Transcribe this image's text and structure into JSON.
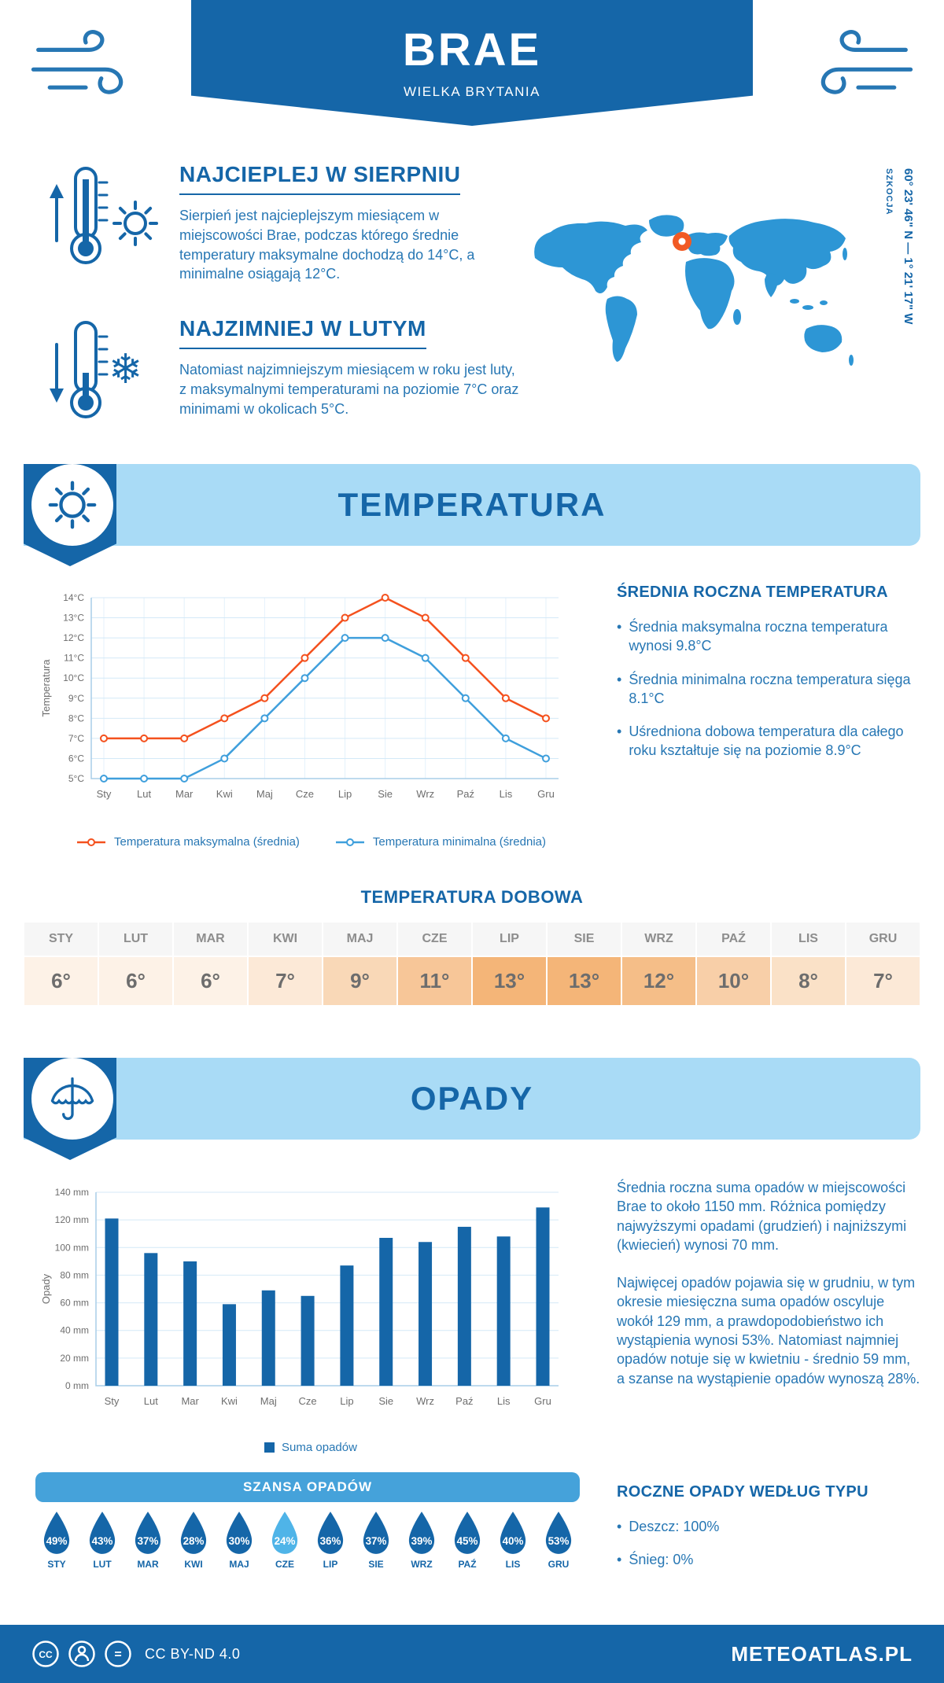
{
  "meta": {
    "brand": "METEOATLAS.PL",
    "license": "CC BY-ND 4.0"
  },
  "header": {
    "title": "BRAE",
    "subtitle": "WIELKA BRYTANIA"
  },
  "highlights": {
    "warm": {
      "title": "NAJCIEPLEJ W SIERPNIU",
      "text": "Sierpień jest najcieplejszym miesiącem w miejscowości Brae, podczas którego średnie temperatury maksymalne dochodzą do 14°C, a minimalne osiągają 12°C."
    },
    "cold": {
      "title": "NAJZIMNIEJ W LUTYM",
      "text": "Natomiast najzimniejszym miesiącem w roku jest luty, z maksymalnymi temperaturami na poziomie 7°C oraz minimami w okolicach 5°C."
    }
  },
  "map": {
    "coordinates": "60° 23' 46\" N — 1° 21' 17\" W",
    "region": "SZKOCJA",
    "marker_color": "#f15a24"
  },
  "sections": {
    "temperature": {
      "title": "TEMPERATURA"
    },
    "precipitation": {
      "title": "OPADY"
    }
  },
  "temperature_summary": {
    "heading": "ŚREDNIA ROCZNA TEMPERATURA",
    "bullets": [
      "Średnia maksymalna roczna temperatura wynosi 9.8°C",
      "Średnia minimalna roczna temperatura sięga 8.1°C",
      "Uśredniona dobowa temperatura dla całego roku kształtuje się na poziomie 8.9°C"
    ]
  },
  "daily_temperature": {
    "heading": "TEMPERATURA DOBOWA",
    "months": [
      "STY",
      "LUT",
      "MAR",
      "KWI",
      "MAJ",
      "CZE",
      "LIP",
      "SIE",
      "WRZ",
      "PAŹ",
      "LIS",
      "GRU"
    ],
    "values": [
      6,
      6,
      6,
      7,
      9,
      11,
      13,
      13,
      12,
      10,
      8,
      7
    ],
    "suffix": "°"
  },
  "precipitation_text": {
    "p1": "Średnia roczna suma opadów w miejscowości Brae to około 1150 mm. Różnica pomiędzy najwyższymi opadami (grudzień) i najniższymi (kwiecień) wynosi 70 mm.",
    "p2": "Najwięcej opadów pojawia się w grudniu, w tym okresie miesięczna suma opadów oscyluje wokół 129 mm, a prawdopodobieństwo ich wystąpienia wynosi 53%. Natomiast najmniej opadów notuje się w kwietniu - średnio 59 mm, a szanse na wystąpienie opadów wynoszą 28%."
  },
  "chance": {
    "heading": "SZANSA OPADÓW",
    "months": [
      "STY",
      "LUT",
      "MAR",
      "KWI",
      "MAJ",
      "CZE",
      "LIP",
      "SIE",
      "WRZ",
      "PAŹ",
      "LIS",
      "GRU"
    ],
    "values": [
      49,
      43,
      37,
      28,
      30,
      24,
      36,
      37,
      39,
      45,
      40,
      53
    ],
    "highlight_index": 5
  },
  "type_summary": {
    "heading": "ROCZNE OPADY WEDŁUG TYPU",
    "bullets": [
      "Deszcz: 100%",
      "Śnieg: 0%"
    ]
  },
  "colors": {
    "primary": "#1566a8",
    "banner": "#a9dbf6",
    "body_text": "#2777b4",
    "table_light": "#fdf2e7",
    "table_dark": "#f4b578",
    "chance_bar": "#45a2da",
    "droplet": "#1566a8",
    "droplet_highlight": "#4fb4e8",
    "marker_orange": "#f15a24"
  },
  "chart_data": [
    {
      "type": "line",
      "categories": [
        "Sty",
        "Lut",
        "Mar",
        "Kwi",
        "Maj",
        "Cze",
        "Lip",
        "Sie",
        "Wrz",
        "Paź",
        "Lis",
        "Gru"
      ],
      "series": [
        {
          "name": "Temperatura maksymalna (średnia)",
          "color": "#f4511e",
          "values": [
            7,
            7,
            7,
            8,
            9,
            11,
            13,
            14,
            13,
            11,
            9,
            8
          ]
        },
        {
          "name": "Temperatura minimalna (średnia)",
          "color": "#3f9fdc",
          "values": [
            5,
            5,
            5,
            6,
            8,
            10,
            12,
            12,
            11,
            9,
            7,
            6
          ]
        }
      ],
      "title": "",
      "xlabel": "",
      "ylabel": "Temperatura",
      "ylim": [
        5,
        14
      ],
      "ytick_step": 1,
      "ytick_suffix": "°C",
      "grid": true,
      "legend_position": "bottom"
    },
    {
      "type": "bar",
      "categories": [
        "Sty",
        "Lut",
        "Mar",
        "Kwi",
        "Maj",
        "Cze",
        "Lip",
        "Sie",
        "Wrz",
        "Paź",
        "Lis",
        "Gru"
      ],
      "series": [
        {
          "name": "Suma opadów",
          "color": "#1566a8",
          "values": [
            121,
            96,
            90,
            59,
            69,
            65,
            87,
            107,
            104,
            115,
            108,
            129
          ]
        }
      ],
      "title": "",
      "xlabel": "",
      "ylabel": "Opady",
      "ylim": [
        0,
        140
      ],
      "ytick_step": 20,
      "ytick_suffix": " mm",
      "grid": true,
      "legend_position": "bottom"
    }
  ]
}
